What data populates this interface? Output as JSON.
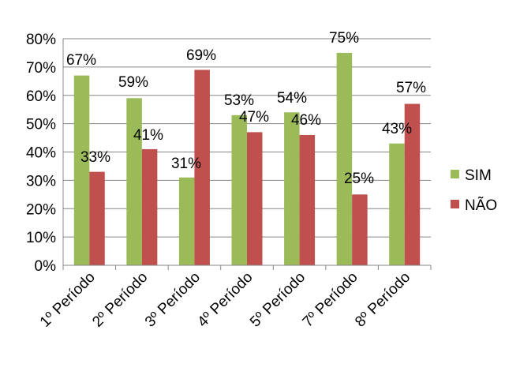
{
  "chart_data": {
    "type": "bar",
    "title": "",
    "xlabel": "",
    "ylabel": "",
    "categories": [
      "1º Período",
      "2º Período",
      "3º Período",
      "4º Período",
      "5º Período",
      "7º Período",
      "8º Período"
    ],
    "series": [
      {
        "name": "SIM",
        "color": "#9BBB59",
        "values": [
          67,
          59,
          31,
          53,
          54,
          75,
          43
        ],
        "labels": [
          "67%",
          "59%",
          "31%",
          "53%",
          "54%",
          "75%",
          "43%"
        ]
      },
      {
        "name": "NÃO",
        "color": "#C0504D",
        "values": [
          33,
          41,
          69,
          47,
          46,
          25,
          57
        ],
        "labels": [
          "33%",
          "41%",
          "69%",
          "47%",
          "46%",
          "25%",
          "57%"
        ]
      }
    ],
    "ylim": [
      0,
      80
    ],
    "yticks": [
      0,
      10,
      20,
      30,
      40,
      50,
      60,
      70,
      80
    ],
    "ytick_labels": [
      "0%",
      "10%",
      "20%",
      "30%",
      "40%",
      "50%",
      "60%",
      "70%",
      "80%"
    ],
    "grid": true,
    "legend_position": "right"
  }
}
